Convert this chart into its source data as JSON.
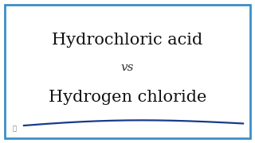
{
  "title1": "Hydrochloric acid",
  "vs_text": "vs",
  "title2": "Hydrogen chloride",
  "background_color": "#ffffff",
  "border_color": "#3a8fc4",
  "text_color": "#111111",
  "vs_color": "#333333",
  "curve_color": "#1a3a8a",
  "border_linewidth": 2.0,
  "title1_fontsize": 15,
  "vs_fontsize": 11,
  "title2_fontsize": 15,
  "watermark": "B"
}
